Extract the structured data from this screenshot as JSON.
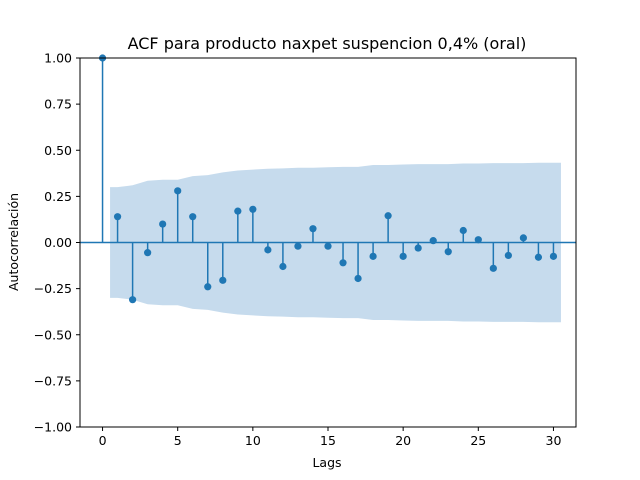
{
  "chart_data": {
    "type": "stem",
    "title": "ACF para producto naxpet suspencion 0,4%  (oral)",
    "xlabel": "Lags",
    "ylabel": "Autocorrelación",
    "xlim": [
      -1.5,
      31.5
    ],
    "ylim": [
      -1.0,
      1.0
    ],
    "xticks": [
      0,
      5,
      10,
      15,
      20,
      25,
      30
    ],
    "yticks": [
      -1.0,
      -0.75,
      -0.5,
      -0.25,
      0.0,
      0.25,
      0.5,
      0.75,
      1.0
    ],
    "xtick_labels": [
      "0",
      "5",
      "10",
      "15",
      "20",
      "25",
      "30"
    ],
    "ytick_labels": [
      "−1.00",
      "−0.75",
      "−0.50",
      "−0.25",
      "0.00",
      "0.25",
      "0.50",
      "0.75",
      "1.00"
    ],
    "grid": false,
    "colors": {
      "stem": "#1f77b4",
      "band": "#c6dbed"
    },
    "lags": [
      0,
      1,
      2,
      3,
      4,
      5,
      6,
      7,
      8,
      9,
      10,
      11,
      12,
      13,
      14,
      15,
      16,
      17,
      18,
      19,
      20,
      21,
      22,
      23,
      24,
      25,
      26,
      27,
      28,
      29,
      30
    ],
    "values": [
      1.0,
      0.14,
      -0.31,
      -0.055,
      0.1,
      0.28,
      0.14,
      -0.24,
      -0.205,
      0.17,
      0.18,
      -0.04,
      -0.13,
      -0.02,
      0.075,
      -0.02,
      -0.11,
      -0.195,
      -0.075,
      0.145,
      -0.075,
      -0.03,
      0.01,
      -0.05,
      0.065,
      0.015,
      -0.14,
      -0.07,
      0.025,
      -0.08,
      -0.075
    ],
    "confidence_band": {
      "lags": [
        0.5,
        1,
        2,
        3,
        4,
        5,
        6,
        7,
        8,
        9,
        10,
        11,
        12,
        13,
        14,
        15,
        16,
        17,
        18,
        19,
        20,
        21,
        22,
        23,
        24,
        25,
        26,
        27,
        28,
        29,
        30,
        30.5
      ],
      "upper": [
        0.3,
        0.3,
        0.31,
        0.335,
        0.34,
        0.34,
        0.36,
        0.365,
        0.38,
        0.39,
        0.395,
        0.4,
        0.402,
        0.405,
        0.405,
        0.408,
        0.41,
        0.41,
        0.42,
        0.42,
        0.423,
        0.425,
        0.425,
        0.425,
        0.428,
        0.428,
        0.43,
        0.43,
        0.43,
        0.432,
        0.432,
        0.432
      ]
    }
  }
}
